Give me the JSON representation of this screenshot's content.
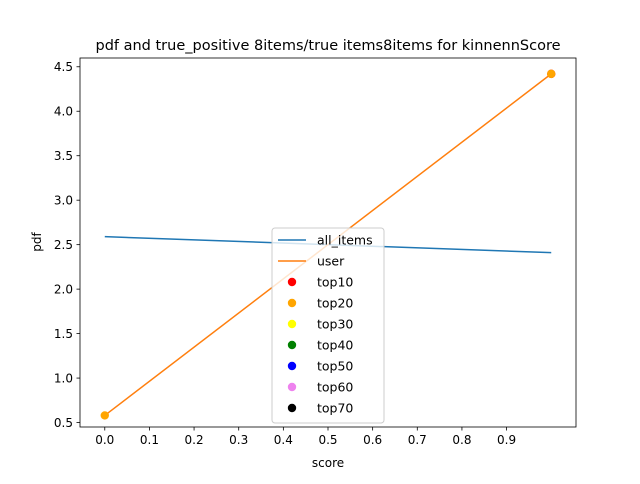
{
  "chart_data": {
    "type": "line",
    "title": "pdf and true_positive 8items/true items8items for kinnennScore",
    "xlabel": "score",
    "ylabel": "pdf",
    "xlim": [
      -0.0555,
      1.0555
    ],
    "ylim": [
      0.4499,
      4.5986
    ],
    "x_ticks": [
      0.0,
      0.1,
      0.2,
      0.3,
      0.4,
      0.5,
      0.6,
      0.7,
      0.8,
      0.9
    ],
    "x_tick_labels": [
      "0.0",
      "0.1",
      "0.2",
      "0.3",
      "0.4",
      "0.5",
      "0.6",
      "0.7",
      "0.8",
      "0.9"
    ],
    "y_ticks": [
      0.5,
      1.0,
      1.5,
      2.0,
      2.5,
      3.0,
      3.5,
      4.0,
      4.5
    ],
    "y_tick_labels": [
      "0.5",
      "1.0",
      "1.5",
      "2.0",
      "2.5",
      "3.0",
      "3.5",
      "4.0",
      "4.5"
    ],
    "grid": false,
    "legend_position": "center-bottom",
    "series": [
      {
        "name": "all_items",
        "kind": "line",
        "color": "#1f77b4",
        "x": [
          0.0,
          1.0
        ],
        "y": [
          2.59,
          2.41
        ]
      },
      {
        "name": "user",
        "kind": "line",
        "color": "#ff7f0e",
        "x": [
          0.0,
          1.0
        ],
        "y": [
          0.58,
          4.42
        ]
      },
      {
        "name": "top10",
        "kind": "scatter",
        "color": "#ff0000",
        "x": [
          1.0
        ],
        "y": [
          4.42
        ]
      },
      {
        "name": "top20",
        "kind": "scatter",
        "color": "#ffa500",
        "x": [
          0.0,
          1.0
        ],
        "y": [
          0.58,
          4.42
        ]
      },
      {
        "name": "top30",
        "kind": "scatter",
        "color": "#ffff00",
        "x": [],
        "y": []
      },
      {
        "name": "top40",
        "kind": "scatter",
        "color": "#008000",
        "x": [],
        "y": []
      },
      {
        "name": "top50",
        "kind": "scatter",
        "color": "#0000ff",
        "x": [],
        "y": []
      },
      {
        "name": "top60",
        "kind": "scatter",
        "color": "#ee82ee",
        "x": [],
        "y": []
      },
      {
        "name": "top70",
        "kind": "scatter",
        "color": "#000000",
        "x": [],
        "y": []
      }
    ]
  }
}
